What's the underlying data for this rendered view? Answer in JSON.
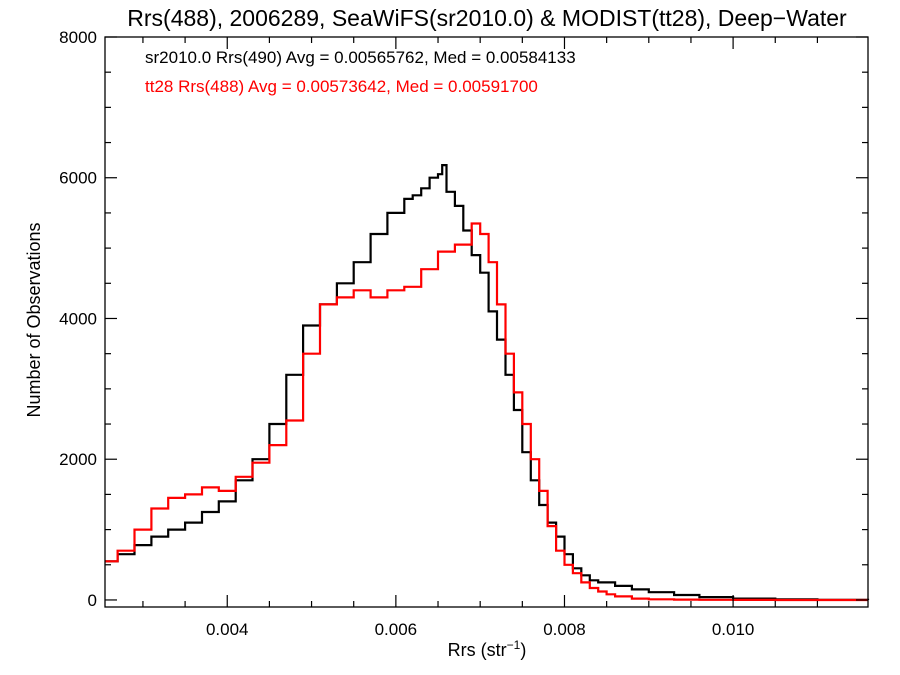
{
  "chart_data": {
    "type": "line",
    "title": "Rrs(488), 2006289, SeaWiFS(sr2010.0) & MODIST(tt28), Deep−Water",
    "xlabel": "Rrs (str",
    "xlabel_sup": "−1",
    "xlabel_end": ")",
    "ylabel": "Number of Observations",
    "xlim": [
      0.00255,
      0.0116
    ],
    "ylim": [
      -100,
      8000
    ],
    "x_ticks": [
      {
        "value": 0.004,
        "label": "0.004"
      },
      {
        "value": 0.006,
        "label": "0.006"
      },
      {
        "value": 0.008,
        "label": "0.008"
      },
      {
        "value": 0.01,
        "label": "0.010"
      }
    ],
    "y_ticks": [
      {
        "value": 0,
        "label": "0"
      },
      {
        "value": 2000,
        "label": "2000"
      },
      {
        "value": 4000,
        "label": "4000"
      },
      {
        "value": 6000,
        "label": "6000"
      },
      {
        "value": 8000,
        "label": "8000"
      }
    ],
    "grid": false,
    "annotations": [
      {
        "text": "sr2010.0 Rrs(490) Avg = 0.00565762, Med = 0.00584133",
        "color": "#000000"
      },
      {
        "text": "tt28 Rrs(488) Avg = 0.00573642, Med = 0.00591700",
        "color": "#ff0000"
      }
    ],
    "series": [
      {
        "color": "#000000",
        "x": [
          0.00255,
          0.0027,
          0.0029,
          0.0031,
          0.0033,
          0.0035,
          0.0037,
          0.0039,
          0.0041,
          0.0043,
          0.0045,
          0.0047,
          0.0049,
          0.0051,
          0.0053,
          0.0055,
          0.0057,
          0.0059,
          0.0061,
          0.0062,
          0.0063,
          0.0064,
          0.0065,
          0.00655,
          0.0066,
          0.0067,
          0.0068,
          0.0069,
          0.007,
          0.0071,
          0.0072,
          0.0073,
          0.0074,
          0.0075,
          0.0076,
          0.0077,
          0.0078,
          0.0079,
          0.008,
          0.0081,
          0.0082,
          0.0083,
          0.0084,
          0.0086,
          0.0088,
          0.009,
          0.0093,
          0.0096,
          0.01,
          0.0105,
          0.011,
          0.0116
        ],
        "values": [
          550,
          650,
          780,
          900,
          1000,
          1100,
          1250,
          1400,
          1700,
          2000,
          2500,
          3200,
          3900,
          4200,
          4500,
          4800,
          5200,
          5500,
          5700,
          5750,
          5850,
          6000,
          6050,
          6180,
          5800,
          5600,
          5250,
          4900,
          4650,
          4100,
          3700,
          3200,
          2700,
          2100,
          1700,
          1350,
          1100,
          900,
          650,
          450,
          350,
          280,
          250,
          200,
          150,
          110,
          70,
          40,
          20,
          8,
          3,
          0
        ]
      },
      {
        "color": "#ff0000",
        "x": [
          0.00255,
          0.0027,
          0.0029,
          0.0031,
          0.0033,
          0.0035,
          0.0037,
          0.0039,
          0.0041,
          0.0043,
          0.0045,
          0.0047,
          0.0049,
          0.0051,
          0.0053,
          0.0055,
          0.0057,
          0.0059,
          0.0061,
          0.0063,
          0.0065,
          0.0067,
          0.0068,
          0.0069,
          0.007,
          0.0071,
          0.0072,
          0.0073,
          0.0074,
          0.0075,
          0.0076,
          0.0077,
          0.0078,
          0.0079,
          0.008,
          0.0081,
          0.0082,
          0.0083,
          0.0084,
          0.0085,
          0.0086,
          0.0088,
          0.009,
          0.0093,
          0.0096,
          0.01,
          0.0105,
          0.011,
          0.0116
        ],
        "values": [
          550,
          700,
          1000,
          1300,
          1450,
          1500,
          1600,
          1550,
          1750,
          1950,
          2200,
          2550,
          3500,
          4200,
          4300,
          4400,
          4300,
          4400,
          4450,
          4700,
          4950,
          5050,
          5050,
          5350,
          5200,
          4800,
          4200,
          3500,
          2950,
          2500,
          2000,
          1550,
          1050,
          700,
          500,
          380,
          250,
          170,
          120,
          80,
          50,
          20,
          10,
          5,
          3,
          1,
          0,
          0,
          0
        ]
      }
    ]
  }
}
